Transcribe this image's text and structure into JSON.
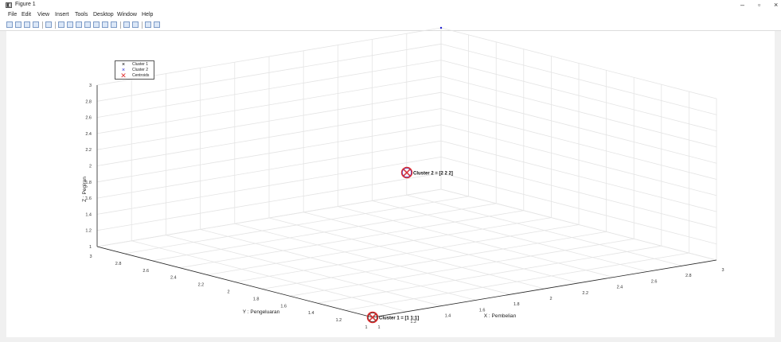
{
  "window": {
    "title": "Figure 1",
    "app_icon": "matlab-figure-icon",
    "minimize": "–",
    "maximize": "▫",
    "close": "×"
  },
  "menu": [
    "File",
    "Edit",
    "View",
    "Insert",
    "Tools",
    "Desktop",
    "Window",
    "Help"
  ],
  "toolbar_icons": [
    "new-figure-icon",
    "open-file-icon",
    "save-icon",
    "print-icon",
    "edit-plot-icon",
    "zoom-in-icon",
    "zoom-out-icon",
    "pan-icon",
    "rotate-3d-icon",
    "data-cursor-icon",
    "brush-icon",
    "link-plot-icon",
    "insert-colorbar-icon",
    "insert-legend-icon",
    "hide-plot-tools-icon",
    "show-plot-tools-icon"
  ],
  "chart_data": {
    "type": "scatter",
    "dimensions": 3,
    "xlabel": "X : Pembelian",
    "ylabel": "Y : Pengeluaran",
    "zlabel": "Z : Pegiran",
    "xlim": [
      1,
      3
    ],
    "ylim": [
      1,
      3
    ],
    "zlim": [
      1,
      3
    ],
    "x_ticks": [
      "1",
      "1.2",
      "1.4",
      "1.6",
      "1.8",
      "2",
      "2.2",
      "2.4",
      "2.6",
      "2.8",
      "3"
    ],
    "y_ticks": [
      "1",
      "1.2",
      "1.4",
      "1.6",
      "1.8",
      "2",
      "2.2",
      "2.4",
      "2.6",
      "2.8",
      "3"
    ],
    "z_ticks": [
      "1",
      "1.2",
      "1.4",
      "1.6",
      "1.8",
      "2",
      "2.2",
      "2.4",
      "2.6",
      "2.8",
      "3"
    ],
    "grid": true,
    "legend": {
      "placement": "top-left",
      "entries": [
        {
          "label": "Cluster 1",
          "marker": "x",
          "color": "#000000"
        },
        {
          "label": "Cluster 2",
          "marker": "x",
          "color": "#1f1fcf"
        },
        {
          "label": "Centroids",
          "marker": "X",
          "color": "#e03030"
        }
      ]
    },
    "series": [
      {
        "name": "Cluster 1",
        "color": "#000000",
        "points": [
          {
            "x": 1,
            "y": 1,
            "z": 1
          }
        ]
      },
      {
        "name": "Cluster 2",
        "color": "#1f1fcf",
        "points": [
          {
            "x": 2,
            "y": 2,
            "z": 2
          }
        ]
      },
      {
        "name": "Centroids",
        "color": "#e03030",
        "points": [
          {
            "x": 1,
            "y": 1,
            "z": 1
          },
          {
            "x": 2,
            "y": 2,
            "z": 2
          }
        ]
      }
    ],
    "annotations": [
      {
        "text": "Cluster 1 = [1  1;1]",
        "x": 1,
        "y": 1,
        "z": 1,
        "color": "#e03030"
      },
      {
        "text": "Cluster 2 = [2  2  2]",
        "x": 2,
        "y": 2,
        "z": 2,
        "color": "#1f1fcf"
      }
    ],
    "extra_point": {
      "x": 3,
      "y": 3,
      "z": 3,
      "color": "#1f1fcf"
    }
  }
}
